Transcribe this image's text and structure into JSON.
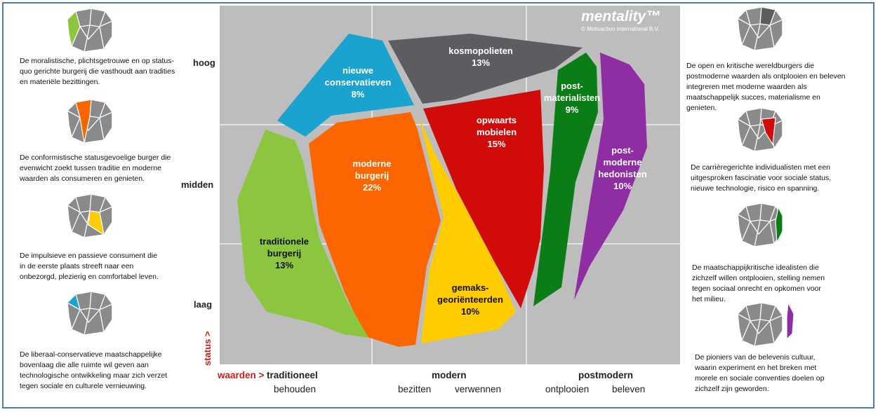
{
  "brand": {
    "name": "mentality™",
    "copyright": "© Motivaction International B.V."
  },
  "levels": {
    "high": "hoog",
    "mid": "midden",
    "low": "laag"
  },
  "status_axis": "status >",
  "values_axis": {
    "marker": "waarden >",
    "traditional": "traditioneel",
    "modern": "modern",
    "postmodern": "postmodern",
    "sub_behouden": "behouden",
    "sub_bezitten": "bezitten",
    "sub_verwennen": "verwennen",
    "sub_ontplooien": "ontplooien",
    "sub_beleven": "beleven"
  },
  "segments": {
    "nieuwe_conservatieven": {
      "line1": "nieuwe",
      "line2": "conservatieven",
      "pct": "8%",
      "color": "#1aa3cf"
    },
    "kosmopolieten": {
      "line1": "kosmopolieten",
      "pct": "13%",
      "color": "#5d5d61"
    },
    "postmaterialisten": {
      "line1": "post-",
      "line2": "materialisten",
      "pct": "9%",
      "color": "#0a7d16"
    },
    "postmoderne_hedonisten": {
      "line1": "post-",
      "line2": "moderne",
      "line3": "hedonisten",
      "pct": "10%",
      "color": "#8f2da2"
    },
    "opwaarts_mobielen": {
      "line1": "opwaarts",
      "line2": "mobielen",
      "pct": "15%",
      "color": "#d10a0a"
    },
    "moderne_burgerij": {
      "line1": "moderne",
      "line2": "burgerij",
      "pct": "22%",
      "color": "#fb6600"
    },
    "traditionele_burgerij": {
      "line1": "traditionele",
      "line2": "burgerij",
      "pct": "13%",
      "color": "#8cc63f"
    },
    "gemaksgeorienteerden": {
      "line1": "gemaks-",
      "line2": "georiënteerden",
      "pct": "10%",
      "color": "#ffcc00"
    }
  },
  "left_descriptions": [
    {
      "lines": [
        "De moralistische, plichtsgetrouwe en op status-",
        "quo gerichte burgerij die vasthoudt aan tradities",
        "en materiële bezittingen."
      ],
      "highlight": "#8cc63f"
    },
    {
      "lines": [
        "De conformistische statusgevoelige burger die",
        "evenwicht zoekt tussen traditie en moderne",
        "waarden als consumeren en genieten."
      ],
      "highlight": "#fb6600"
    },
    {
      "lines": [
        "De impulsieve en passieve consument die",
        "in de eerste plaats streeft naar een",
        "onbezorgd, plezierig en comfortabel leven."
      ],
      "highlight": "#ffcc00"
    },
    {
      "lines": [
        "De liberaal-conservatieve maatschappelijke",
        "bovenlaag die alle ruimte wil geven aan",
        "technologische ontwikkeling maar zich verzet",
        "tegen sociale en culturele vernieuwing."
      ],
      "highlight": "#1aa3cf"
    }
  ],
  "right_descriptions": [
    {
      "lines": [
        "De open en kritische wereldburgers die",
        "postmoderne waarden als ontplooien en beleven",
        "integreren met moderne waarden als",
        "maatschappelijk succes, materialisme en",
        "genieten."
      ],
      "highlight": "#5d5d61"
    },
    {
      "lines": [
        "De carrièregerichte individualisten met een",
        "uitgesproken fascinatie voor sociale status,",
        "nieuwe technologie, risico en spanning."
      ],
      "highlight": "#d10a0a"
    },
    {
      "lines": [
        "De maatschappijkritische idealisten die",
        "zichzelf willen ontplooien, stelling nemen",
        "tegen sociaal onrecht en opkomen voor",
        "het milieu."
      ],
      "highlight": "#0a7d16"
    },
    {
      "lines": [
        "De pioniers van de belevenis cultuur,",
        "waarin experiment en het breken met",
        "morele en sociale conventies doelen op",
        "zichzelf zijn geworden."
      ],
      "highlight": "#8f2da2"
    }
  ]
}
